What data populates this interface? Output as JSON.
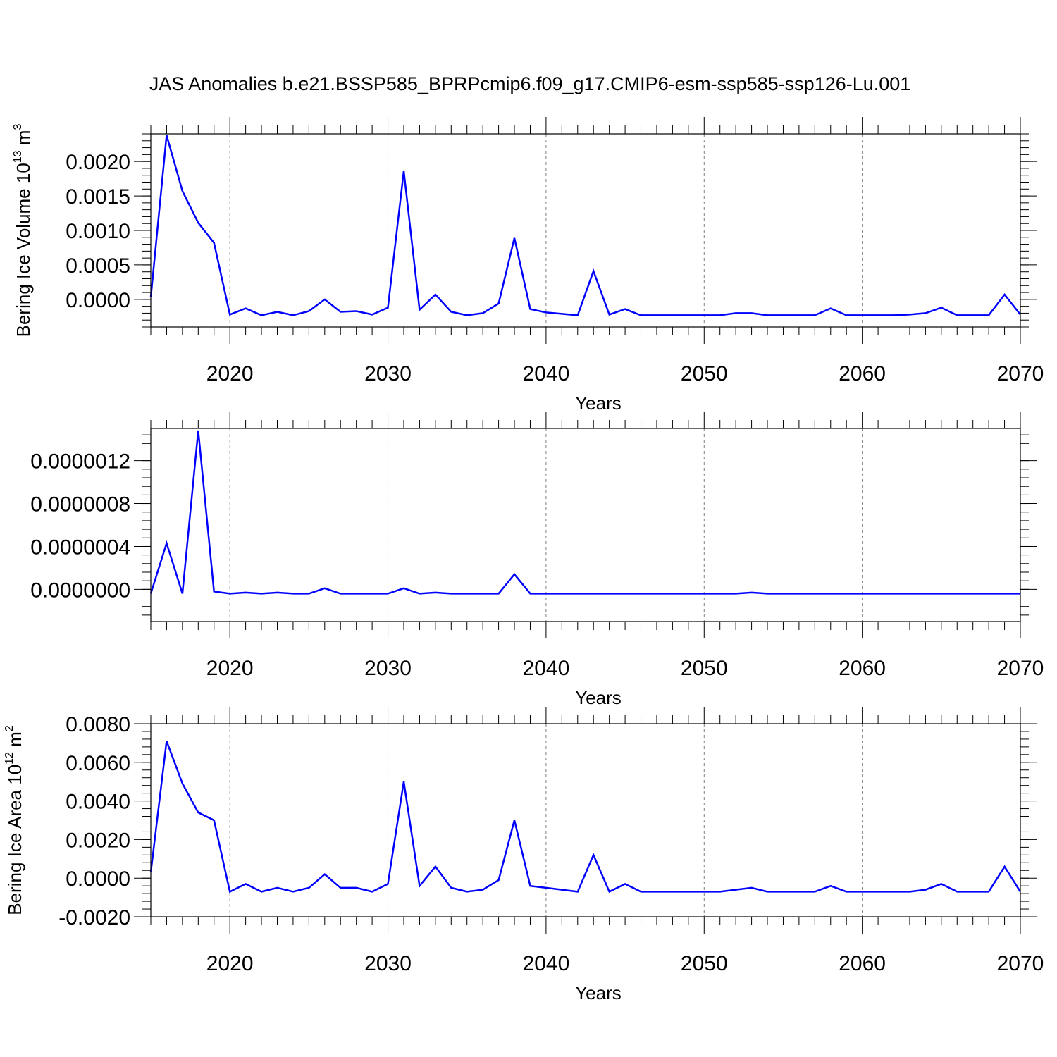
{
  "figure": {
    "title": "JAS Anomalies b.e21.BSSP585_BPRPcmip6.f09_g17.CMIP6-esm-ssp585-ssp126-Lu.001"
  },
  "colors": {
    "series": "#0000ff",
    "grid": "#7f7f7f",
    "axis": "#000000"
  },
  "chart_data": [
    {
      "type": "line",
      "ylabel_parts": {
        "base": "Bering Ice Volume 10",
        "exp": "13",
        "mid": " m",
        "unit_exp": "3"
      },
      "xlabel": "Years",
      "xlim": [
        2015,
        2070
      ],
      "ylim": [
        -0.0004,
        0.0024
      ],
      "grid": "vertical dashed at major x ticks",
      "x_major_ticks": [
        2020,
        2030,
        2040,
        2050,
        2060,
        2070
      ],
      "y_major_ticks": [
        0.0,
        0.0005,
        0.001,
        0.0015,
        0.002
      ],
      "y_tick_labels": [
        "0.0000",
        "0.0005",
        "0.0010",
        "0.0015",
        "0.0020"
      ],
      "x": [
        2015,
        2016,
        2017,
        2018,
        2019,
        2020,
        2021,
        2022,
        2023,
        2024,
        2025,
        2026,
        2027,
        2028,
        2029,
        2030,
        2031,
        2032,
        2033,
        2034,
        2035,
        2036,
        2037,
        2038,
        2039,
        2040,
        2041,
        2042,
        2043,
        2044,
        2045,
        2046,
        2047,
        2048,
        2049,
        2050,
        2051,
        2052,
        2053,
        2054,
        2055,
        2056,
        2057,
        2058,
        2059,
        2060,
        2061,
        2062,
        2063,
        2064,
        2065,
        2066,
        2067,
        2068,
        2069,
        2070
      ],
      "series": [
        {
          "values": [
            3e-05,
            0.00238,
            0.00157,
            0.00111,
            0.00082,
            -0.00022,
            -0.00013,
            -0.00023,
            -0.00018,
            -0.00023,
            -0.00017,
            0.0,
            -0.00018,
            -0.00017,
            -0.00022,
            -0.00012,
            0.00186,
            -0.00015,
            7e-05,
            -0.00018,
            -0.00023,
            -0.0002,
            -6e-05,
            0.00089,
            -0.00014,
            -0.00019,
            -0.00021,
            -0.00023,
            0.00041,
            -0.00022,
            -0.00014,
            -0.00023,
            -0.00023,
            -0.00023,
            -0.00023,
            -0.00023,
            -0.00023,
            -0.0002,
            -0.0002,
            -0.00023,
            -0.00023,
            -0.00023,
            -0.00023,
            -0.00013,
            -0.00023,
            -0.00023,
            -0.00023,
            -0.00023,
            -0.00022,
            -0.0002,
            -0.00012,
            -0.00023,
            -0.00023,
            -0.00023,
            7e-05,
            -0.00022
          ]
        }
      ]
    },
    {
      "type": "line",
      "ylabel_parts": {
        "base": "",
        "exp": "",
        "mid": "",
        "unit_exp": ""
      },
      "xlabel": "Years",
      "xlim": [
        2015,
        2070
      ],
      "ylim": [
        -3e-07,
        1.5e-06
      ],
      "grid": "vertical dashed at major x ticks",
      "x_major_ticks": [
        2020,
        2030,
        2040,
        2050,
        2060,
        2070
      ],
      "y_major_ticks": [
        0.0,
        4e-07,
        8e-07,
        1.2e-06
      ],
      "y_tick_labels": [
        "0.0000000",
        "0.0000004",
        "0.0000008",
        "0.0000012"
      ],
      "x": [
        2015,
        2016,
        2017,
        2018,
        2019,
        2020,
        2021,
        2022,
        2023,
        2024,
        2025,
        2026,
        2027,
        2028,
        2029,
        2030,
        2031,
        2032,
        2033,
        2034,
        2035,
        2036,
        2037,
        2038,
        2039,
        2040,
        2041,
        2042,
        2043,
        2044,
        2045,
        2046,
        2047,
        2048,
        2049,
        2050,
        2051,
        2052,
        2053,
        2054,
        2055,
        2056,
        2057,
        2058,
        2059,
        2060,
        2061,
        2062,
        2063,
        2064,
        2065,
        2066,
        2067,
        2068,
        2069,
        2070
      ],
      "series": [
        {
          "values": [
            -4e-08,
            4.3e-07,
            -4e-08,
            1.48e-06,
            -2e-08,
            -4e-08,
            -3e-08,
            -4e-08,
            -3e-08,
            -4e-08,
            -4e-08,
            1e-08,
            -4e-08,
            -4e-08,
            -4e-08,
            -4e-08,
            1e-08,
            -4e-08,
            -3e-08,
            -4e-08,
            -4e-08,
            -4e-08,
            -4e-08,
            1.4e-07,
            -4e-08,
            -4e-08,
            -4e-08,
            -4e-08,
            -4e-08,
            -4e-08,
            -4e-08,
            -4e-08,
            -4e-08,
            -4e-08,
            -4e-08,
            -4e-08,
            -4e-08,
            -4e-08,
            -3e-08,
            -4e-08,
            -4e-08,
            -4e-08,
            -4e-08,
            -4e-08,
            -4e-08,
            -4e-08,
            -4e-08,
            -4e-08,
            -4e-08,
            -4e-08,
            -4e-08,
            -4e-08,
            -4e-08,
            -4e-08,
            -4e-08,
            -4e-08
          ]
        }
      ]
    },
    {
      "type": "line",
      "ylabel_parts": {
        "base": "Bering Ice Area 10",
        "exp": "12",
        "mid": " m",
        "unit_exp": "2"
      },
      "xlabel": "Years",
      "xlim": [
        2015,
        2070
      ],
      "ylim": [
        -0.002,
        0.008
      ],
      "grid": "vertical dashed at major x ticks",
      "x_major_ticks": [
        2020,
        2030,
        2040,
        2050,
        2060,
        2070
      ],
      "y_major_ticks": [
        -0.002,
        0.0,
        0.002,
        0.004,
        0.006,
        0.008
      ],
      "y_tick_labels": [
        "-0.0020",
        "0.0000",
        "0.0020",
        "0.0040",
        "0.0060",
        "0.0080"
      ],
      "x": [
        2015,
        2016,
        2017,
        2018,
        2019,
        2020,
        2021,
        2022,
        2023,
        2024,
        2025,
        2026,
        2027,
        2028,
        2029,
        2030,
        2031,
        2032,
        2033,
        2034,
        2035,
        2036,
        2037,
        2038,
        2039,
        2040,
        2041,
        2042,
        2043,
        2044,
        2045,
        2046,
        2047,
        2048,
        2049,
        2050,
        2051,
        2052,
        2053,
        2054,
        2055,
        2056,
        2057,
        2058,
        2059,
        2060,
        2061,
        2062,
        2063,
        2064,
        2065,
        2066,
        2067,
        2068,
        2069,
        2070
      ],
      "series": [
        {
          "values": [
            0.0003,
            0.0071,
            0.0049,
            0.0034,
            0.003,
            -0.0007,
            -0.0003,
            -0.0007,
            -0.0005,
            -0.0007,
            -0.0005,
            0.0002,
            -0.0005,
            -0.0005,
            -0.0007,
            -0.0003,
            0.005,
            -0.0004,
            0.0006,
            -0.0005,
            -0.0007,
            -0.0006,
            -0.0001,
            0.003,
            -0.0004,
            -0.0005,
            -0.0006,
            -0.0007,
            0.0012,
            -0.0007,
            -0.0003,
            -0.0007,
            -0.0007,
            -0.0007,
            -0.0007,
            -0.0007,
            -0.0007,
            -0.0006,
            -0.0005,
            -0.0007,
            -0.0007,
            -0.0007,
            -0.0007,
            -0.0004,
            -0.0007,
            -0.0007,
            -0.0007,
            -0.0007,
            -0.0007,
            -0.0006,
            -0.0003,
            -0.0007,
            -0.0007,
            -0.0007,
            0.0006,
            -0.0007
          ]
        }
      ]
    }
  ]
}
